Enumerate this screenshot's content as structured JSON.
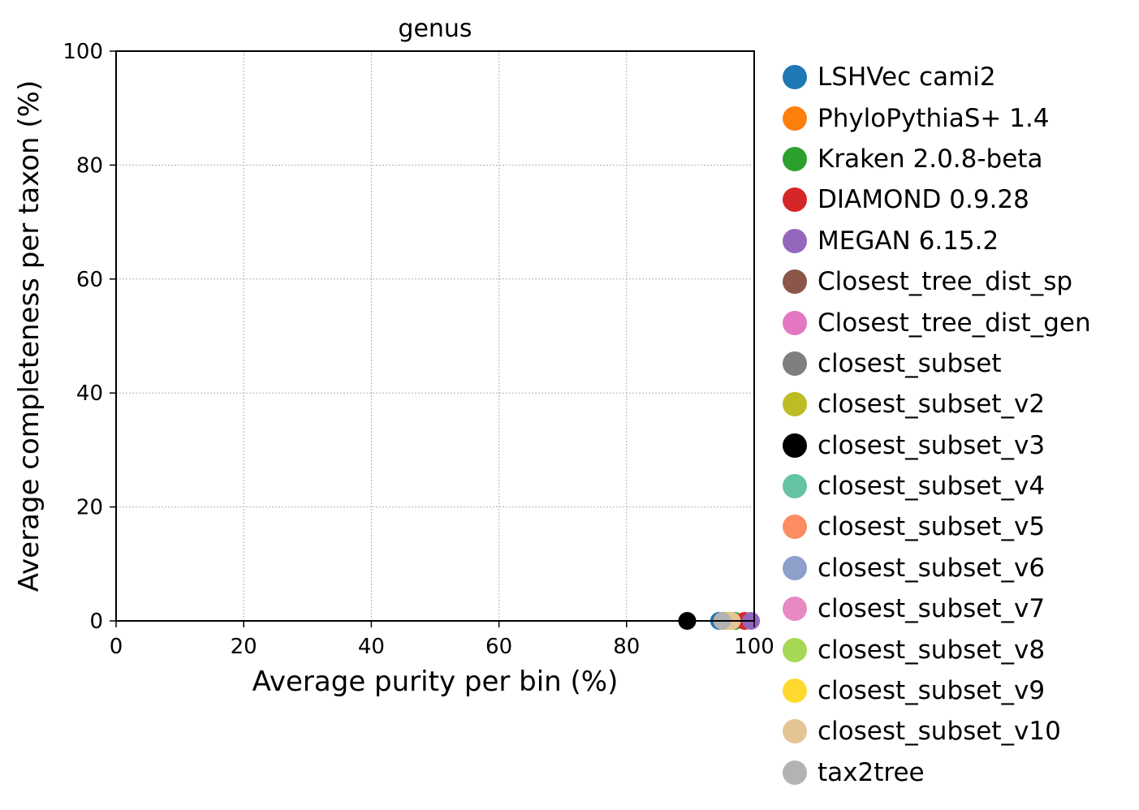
{
  "chart_data": {
    "type": "scatter",
    "title": "genus",
    "xlabel": "Average purity per bin (%)",
    "ylabel": "Average completeness per taxon (%)",
    "xlim": [
      0,
      100
    ],
    "ylim": [
      0,
      100
    ],
    "xticks": [
      "0",
      "20",
      "40",
      "60",
      "80",
      "100"
    ],
    "yticks": [
      "0",
      "20",
      "40",
      "60",
      "80",
      "100"
    ],
    "grid": true,
    "legend_position": "outside-right",
    "series": [
      {
        "name": "LSHVec cami2",
        "color": "#1f77b4",
        "x": 94.5,
        "y": 0
      },
      {
        "name": "PhyloPythiaS+ 1.4",
        "color": "#ff7f0e",
        "x": 96.5,
        "y": 0
      },
      {
        "name": "Kraken 2.0.8-beta",
        "color": "#2ca02c",
        "x": 97.0,
        "y": 0
      },
      {
        "name": "DIAMOND 0.9.28",
        "color": "#d62728",
        "x": 98.5,
        "y": 0
      },
      {
        "name": "MEGAN 6.15.2",
        "color": "#9467bd",
        "x": 99.5,
        "y": 0
      },
      {
        "name": "Closest_tree_dist_sp",
        "color": "#8c564b",
        "x": 95.5,
        "y": 0
      },
      {
        "name": "Closest_tree_dist_gen",
        "color": "#e377c2",
        "x": 95.5,
        "y": 0
      },
      {
        "name": "closest_subset",
        "color": "#7f7f7f",
        "x": 95.0,
        "y": 0
      },
      {
        "name": "closest_subset_v2",
        "color": "#bcbd22",
        "x": 96.0,
        "y": 0
      },
      {
        "name": "closest_subset_v3",
        "color": "#000000",
        "x": 89.5,
        "y": 0
      },
      {
        "name": "closest_subset_v4",
        "color": "#66c2a5",
        "x": 95.5,
        "y": 0
      },
      {
        "name": "closest_subset_v5",
        "color": "#fc8d62",
        "x": 96.0,
        "y": 0
      },
      {
        "name": "closest_subset_v6",
        "color": "#8da0cb",
        "x": 95.0,
        "y": 0
      },
      {
        "name": "closest_subset_v7",
        "color": "#e78ac3",
        "x": 95.5,
        "y": 0
      },
      {
        "name": "closest_subset_v8",
        "color": "#a6d854",
        "x": 96.0,
        "y": 0
      },
      {
        "name": "closest_subset_v9",
        "color": "#ffd92f",
        "x": 96.0,
        "y": 0
      },
      {
        "name": "closest_subset_v10",
        "color": "#e5c494",
        "x": 96.5,
        "y": 0
      },
      {
        "name": "tax2tree",
        "color": "#b3b3b3",
        "x": 95.0,
        "y": 0
      }
    ]
  }
}
